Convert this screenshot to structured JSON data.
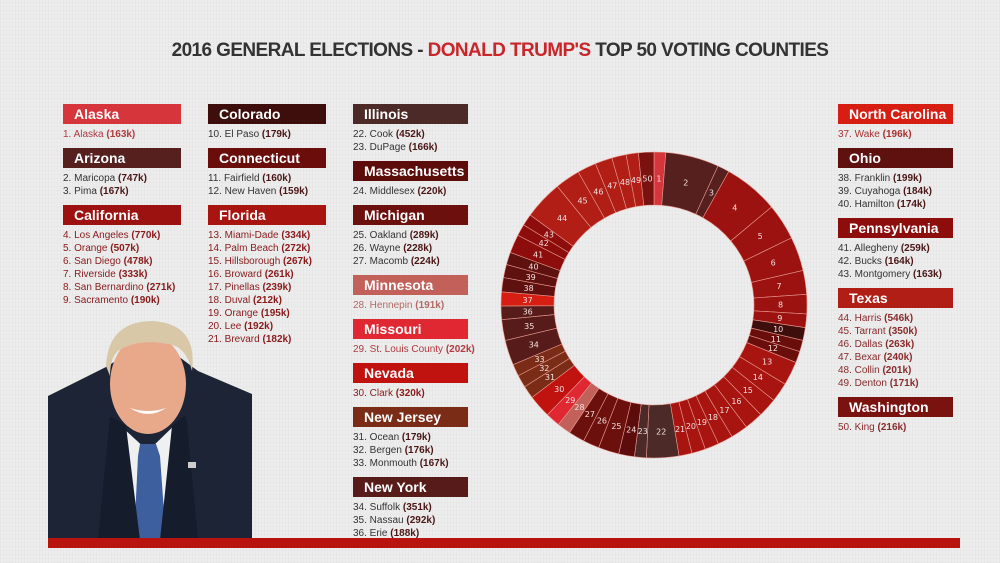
{
  "title": {
    "part1": "2016 GENERAL ELECTIONS - ",
    "highlight": "DONALD TRUMP'S",
    "part2": " TOP 50 VOTING COUNTIES"
  },
  "columns": [
    [
      {
        "state": "Alaska",
        "color": "#d6353c",
        "text_color": "#b23a40",
        "counties": [
          {
            "rank": 1,
            "name": "Alaska",
            "value": "163k"
          }
        ]
      },
      {
        "state": "Arizona",
        "color": "#55201e",
        "text_color": "#333333",
        "counties": [
          {
            "rank": 2,
            "name": "Maricopa",
            "value": "747k"
          },
          {
            "rank": 3,
            "name": "Pima",
            "value": "167k"
          }
        ]
      },
      {
        "state": "California",
        "color": "#9c1210",
        "text_color": "#8a1a1a",
        "counties": [
          {
            "rank": 4,
            "name": "Los Angeles",
            "value": "770k"
          },
          {
            "rank": 5,
            "name": "Orange",
            "value": "507k"
          },
          {
            "rank": 6,
            "name": "San Diego",
            "value": "478k"
          },
          {
            "rank": 7,
            "name": "Riverside",
            "value": "333k"
          },
          {
            "rank": 8,
            "name": "San Bernardino",
            "value": "271k"
          },
          {
            "rank": 9,
            "name": "Sacramento",
            "value": "190k"
          }
        ]
      }
    ],
    [
      {
        "state": "Colorado",
        "color": "#3e0e0c",
        "text_color": "#333333",
        "counties": [
          {
            "rank": 10,
            "name": "El Paso",
            "value": "179k"
          }
        ]
      },
      {
        "state": "Connecticut",
        "color": "#6a0e0c",
        "text_color": "#333333",
        "counties": [
          {
            "rank": 11,
            "name": "Fairfield",
            "value": "160k"
          },
          {
            "rank": 12,
            "name": "New Haven",
            "value": "159k"
          }
        ]
      },
      {
        "state": "Florida",
        "color": "#a81410",
        "text_color": "#8a1a1a",
        "counties": [
          {
            "rank": 13,
            "name": "Miami-Dade",
            "value": "334k"
          },
          {
            "rank": 14,
            "name": "Palm Beach",
            "value": "272k"
          },
          {
            "rank": 15,
            "name": "Hillsborough",
            "value": "267k"
          },
          {
            "rank": 16,
            "name": "Broward",
            "value": "261k"
          },
          {
            "rank": 17,
            "name": "Pinellas",
            "value": "239k"
          },
          {
            "rank": 18,
            "name": "Duval",
            "value": "212k"
          },
          {
            "rank": 19,
            "name": "Orange",
            "value": "195k"
          },
          {
            "rank": 20,
            "name": "Lee",
            "value": "192k"
          },
          {
            "rank": 21,
            "name": "Brevard",
            "value": "182k"
          }
        ]
      }
    ],
    [
      {
        "state": "Illinois",
        "color": "#4b2a28",
        "text_color": "#333333",
        "counties": [
          {
            "rank": 22,
            "name": "Cook",
            "value": "452k"
          },
          {
            "rank": 23,
            "name": "DuPage",
            "value": "166k"
          }
        ]
      },
      {
        "state": "Massachusetts",
        "color": "#5c0c0a",
        "text_color": "#333333",
        "counties": [
          {
            "rank": 24,
            "name": "Middlesex",
            "value": "220k"
          }
        ]
      },
      {
        "state": "Michigan",
        "color": "#6b100c",
        "text_color": "#333333",
        "counties": [
          {
            "rank": 25,
            "name": "Oakland",
            "value": "289k"
          },
          {
            "rank": 26,
            "name": "Wayne",
            "value": "228k"
          },
          {
            "rank": 27,
            "name": "Macomb",
            "value": "224k"
          }
        ]
      },
      {
        "state": "Minnesota",
        "color": "#c2605a",
        "text_color": "#b26a66",
        "counties": [
          {
            "rank": 28,
            "name": "Hennepin",
            "value": "191k"
          }
        ]
      },
      {
        "state": "Missouri",
        "color": "#e02832",
        "text_color": "#b23a40",
        "counties": [
          {
            "rank": 29,
            "name": "St. Louis County",
            "value": "202k"
          }
        ]
      },
      {
        "state": "Nevada",
        "color": "#c0120e",
        "text_color": "#8a1a1a",
        "counties": [
          {
            "rank": 30,
            "name": "Clark",
            "value": "320k"
          }
        ]
      },
      {
        "state": "New Jersey",
        "color": "#7a2c16",
        "text_color": "#333333",
        "counties": [
          {
            "rank": 31,
            "name": "Ocean",
            "value": "179k"
          },
          {
            "rank": 32,
            "name": "Bergen",
            "value": "176k"
          },
          {
            "rank": 33,
            "name": "Monmouth",
            "value": "167k"
          }
        ]
      },
      {
        "state": "New York",
        "color": "#571c1a",
        "text_color": "#333333",
        "counties": [
          {
            "rank": 34,
            "name": "Suffolk",
            "value": "351k"
          },
          {
            "rank": 35,
            "name": "Nassau",
            "value": "292k"
          },
          {
            "rank": 36,
            "name": "Erie",
            "value": "188k"
          }
        ]
      }
    ],
    [
      {
        "state": "North Carolina",
        "color": "#d61e12",
        "text_color": "#a8322e",
        "counties": [
          {
            "rank": 37,
            "name": "Wake",
            "value": "196k"
          }
        ]
      },
      {
        "state": "Ohio",
        "color": "#5e110e",
        "text_color": "#333333",
        "counties": [
          {
            "rank": 38,
            "name": "Franklin",
            "value": "199k"
          },
          {
            "rank": 39,
            "name": "Cuyahoga",
            "value": "184k"
          },
          {
            "rank": 40,
            "name": "Hamilton",
            "value": "174k"
          }
        ]
      },
      {
        "state": "Pennsylvania",
        "color": "#8c0d0b",
        "text_color": "#333333",
        "counties": [
          {
            "rank": 41,
            "name": "Allegheny",
            "value": "259k"
          },
          {
            "rank": 42,
            "name": "Bucks",
            "value": "164k"
          },
          {
            "rank": 43,
            "name": "Montgomery",
            "value": "163k"
          }
        ]
      },
      {
        "state": "Texas",
        "color": "#b01e16",
        "text_color": "#8a2a2a",
        "counties": [
          {
            "rank": 44,
            "name": "Harris",
            "value": "546k"
          },
          {
            "rank": 45,
            "name": "Tarrant",
            "value": "350k"
          },
          {
            "rank": 46,
            "name": "Dallas",
            "value": "263k"
          },
          {
            "rank": 47,
            "name": "Bexar",
            "value": "240k"
          },
          {
            "rank": 48,
            "name": "Collin",
            "value": "201k"
          },
          {
            "rank": 49,
            "name": "Denton",
            "value": "171k"
          }
        ]
      },
      {
        "state": "Washington",
        "color": "#7a1210",
        "text_color": "#8a2a2a",
        "counties": [
          {
            "rank": 50,
            "name": "King",
            "value": "216k"
          }
        ]
      }
    ]
  ],
  "chart_data": {
    "type": "pie",
    "variant": "donut",
    "direction": "clockwise from top",
    "categories": [
      "1",
      "2",
      "3",
      "4",
      "5",
      "6",
      "7",
      "8",
      "9",
      "10",
      "11",
      "12",
      "13",
      "14",
      "15",
      "16",
      "17",
      "18",
      "19",
      "20",
      "21",
      "22",
      "23",
      "24",
      "25",
      "26",
      "27",
      "28",
      "29",
      "30",
      "31",
      "32",
      "33",
      "34",
      "35",
      "36",
      "37",
      "38",
      "39",
      "40",
      "41",
      "42",
      "43",
      "44",
      "45",
      "46",
      "47",
      "48",
      "49",
      "50"
    ],
    "values": [
      163,
      747,
      167,
      770,
      507,
      478,
      333,
      271,
      190,
      179,
      160,
      159,
      334,
      272,
      267,
      261,
      239,
      212,
      195,
      192,
      182,
      452,
      166,
      220,
      289,
      228,
      224,
      191,
      202,
      320,
      179,
      176,
      167,
      351,
      292,
      188,
      196,
      199,
      184,
      174,
      259,
      164,
      163,
      546,
      350,
      263,
      240,
      201,
      171,
      216
    ],
    "unit": "thousand votes",
    "slice_color": "by state"
  }
}
